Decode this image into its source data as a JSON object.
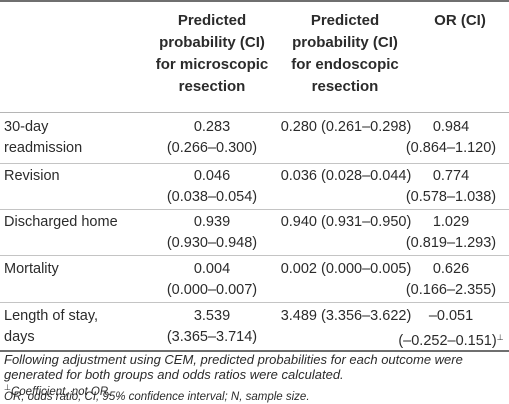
{
  "headers": {
    "col2": [
      "Predicted",
      "probability (CI)",
      "for microscopic",
      "resection"
    ],
    "col3": [
      "Predicted",
      "probability (CI)",
      "for endoscopic",
      "resection"
    ],
    "col4": [
      "OR (CI)"
    ]
  },
  "rows": [
    {
      "label": [
        "30-day",
        "readmission"
      ],
      "micro": [
        "0.283",
        "(0.266–0.300)"
      ],
      "endo": "0.280 (0.261–0.298)",
      "or": [
        "0.984",
        "(0.864–1.120)"
      ]
    },
    {
      "label": [
        "Revision"
      ],
      "micro": [
        "0.046",
        "(0.038–0.054)"
      ],
      "endo": "0.036 (0.028–0.044)",
      "or": [
        "0.774",
        "(0.578–1.038)"
      ]
    },
    {
      "label": [
        "Discharged home"
      ],
      "micro": [
        "0.939",
        "(0.930–0.948)"
      ],
      "endo": "0.940 (0.931–0.950)",
      "or": [
        "1.029",
        "(0.819–1.293)"
      ]
    },
    {
      "label": [
        "Mortality"
      ],
      "micro": [
        "0.004",
        "(0.000–0.007)"
      ],
      "endo": "0.002 (0.000–0.005)",
      "or": [
        "0.626",
        "(0.166–2.355)"
      ]
    },
    {
      "label": [
        "Length of stay,",
        "days"
      ],
      "micro": [
        "3.539",
        "(3.365–3.714)"
      ],
      "endo": "3.489 (3.356–3.622)",
      "or": [
        "–0.051",
        "(–0.252–0.151)"
      ],
      "or_mark": "⊥"
    }
  ],
  "notes": {
    "line1": "Following adjustment using CEM, predicted probabilities for each outcome were",
    "line2": "generated for both groups and odds ratios were calculated.",
    "mark": "⊥",
    "line3": "Coefficient, not OR.",
    "line4": "OR, odds ratio; CI, 95% confidence interval; N, sample size."
  }
}
